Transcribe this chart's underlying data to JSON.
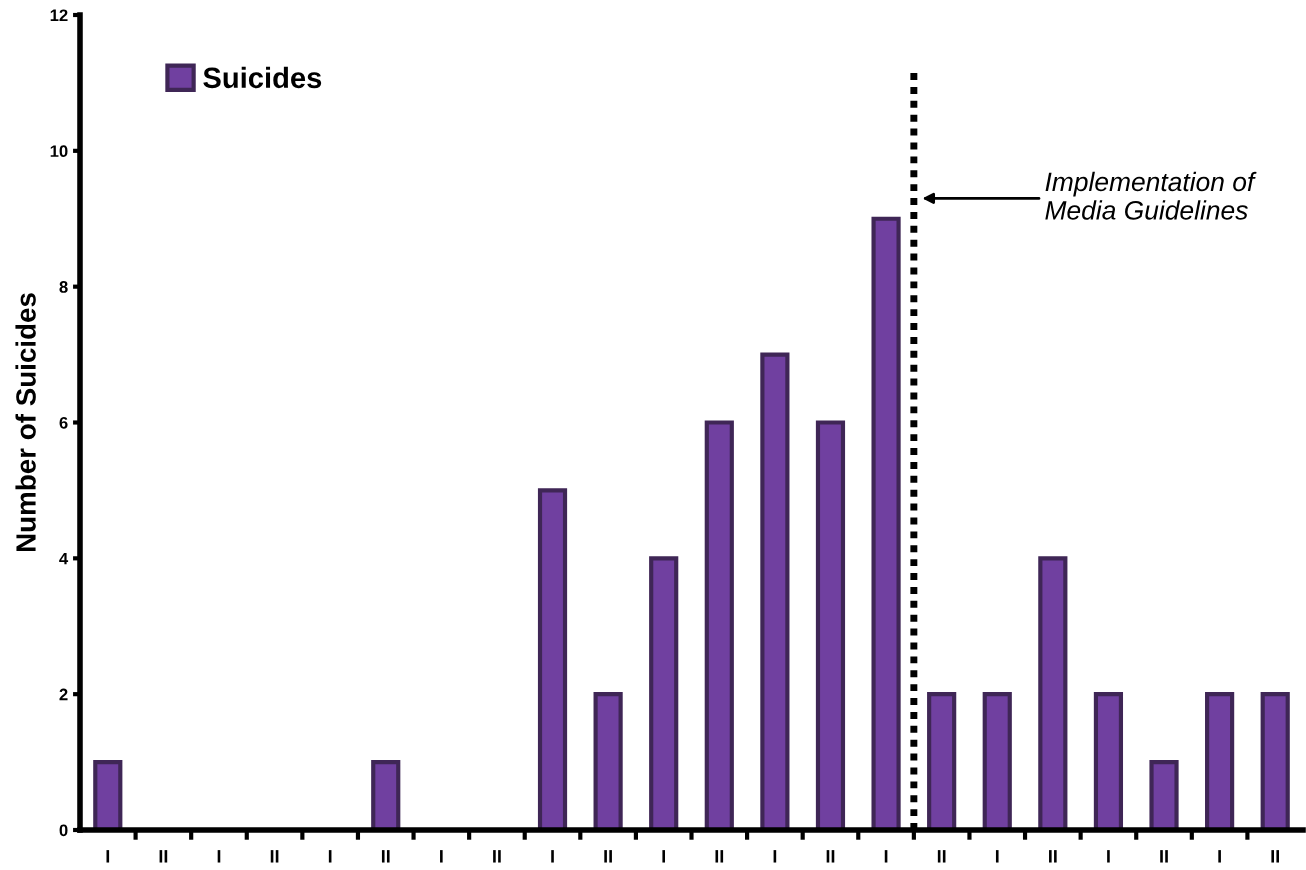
{
  "chart_data": {
    "type": "bar",
    "ylabel": "Number of Suicides",
    "categories": [
      "I",
      "II",
      "I",
      "II",
      "I",
      "II",
      "I",
      "II",
      "I",
      "II",
      "I",
      "II",
      "I",
      "II",
      "I",
      "II",
      "I",
      "II",
      "I",
      "II",
      "I",
      "II"
    ],
    "series": [
      {
        "name": "Suicides",
        "color": "#7040a0",
        "values": [
          1,
          0,
          0,
          0,
          0,
          1,
          0,
          0,
          5,
          2,
          4,
          6,
          7,
          6,
          9,
          2,
          2,
          4,
          2,
          1,
          2,
          2
        ]
      }
    ],
    "ylim": [
      0,
      12
    ],
    "yticks": [
      0,
      2,
      4,
      6,
      8,
      10,
      12
    ],
    "annotations": [
      "Implementation of\nMedia Guidelines"
    ],
    "legend": "top left",
    "grid": false
  }
}
